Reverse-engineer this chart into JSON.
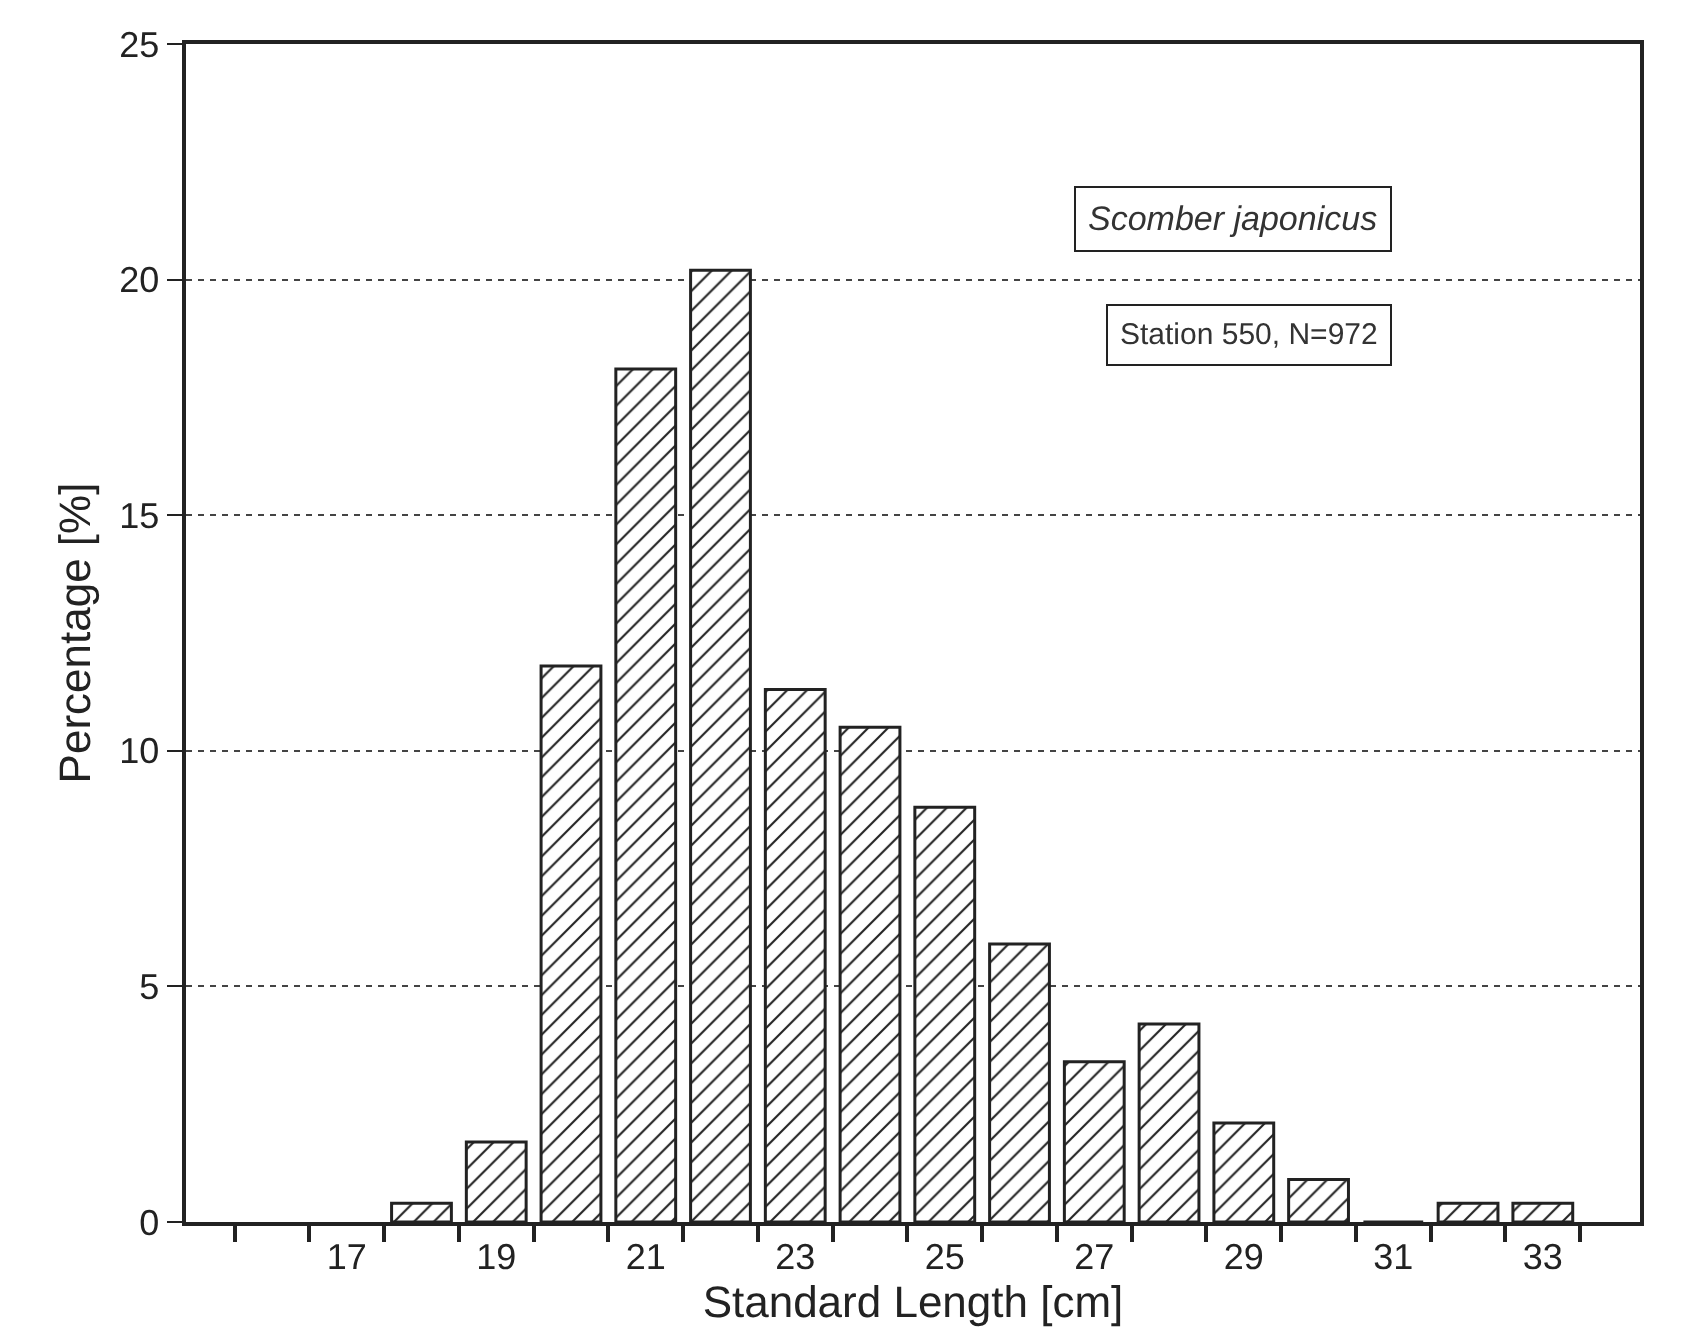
{
  "chart_data": {
    "type": "bar",
    "x": [
      18,
      19,
      20,
      21,
      22,
      23,
      24,
      25,
      26,
      27,
      28,
      29,
      30,
      31,
      32,
      33
    ],
    "values": [
      0.4,
      1.7,
      11.8,
      18.1,
      20.2,
      11.3,
      10.5,
      8.8,
      5.9,
      3.4,
      4.2,
      2.1,
      0.9,
      0,
      0.4,
      0.4
    ],
    "color": "#222222",
    "xlabel": "Standard Length [cm]",
    "ylabel": "Percentage [%]",
    "xlim": [
      14.85,
      34.3
    ],
    "xticks": [
      17,
      19,
      21,
      23,
      25,
      27,
      29,
      31,
      33,
      {
        "value": 15.5,
        "label": null
      },
      {
        "value": 16.5,
        "label": null
      },
      {
        "value": 17.5,
        "label": null
      },
      {
        "value": 18.5,
        "label": null
      },
      {
        "value": 19.5,
        "label": null
      },
      {
        "value": 20.5,
        "label": null
      },
      {
        "value": 21.5,
        "label": null
      },
      {
        "value": 22.5,
        "label": null
      },
      {
        "value": 23.5,
        "label": null
      },
      {
        "value": 24.5,
        "label": null
      },
      {
        "value": 25.5,
        "label": null
      },
      {
        "value": 26.5,
        "label": null
      },
      {
        "value": 27.5,
        "label": null
      },
      {
        "value": 28.5,
        "label": null
      },
      {
        "value": 29.5,
        "label": null
      },
      {
        "value": 30.5,
        "label": null
      },
      {
        "value": 31.5,
        "label": null
      },
      {
        "value": 32.5,
        "label": null
      },
      {
        "value": 33.5,
        "label": null
      }
    ],
    "ylim": [
      0,
      25
    ],
    "yticks": [
      0,
      5,
      10,
      15,
      20,
      25
    ],
    "grid": "y",
    "legend": false,
    "annotations": [
      "Scomber japonicus",
      "Station 550, N=972"
    ]
  }
}
